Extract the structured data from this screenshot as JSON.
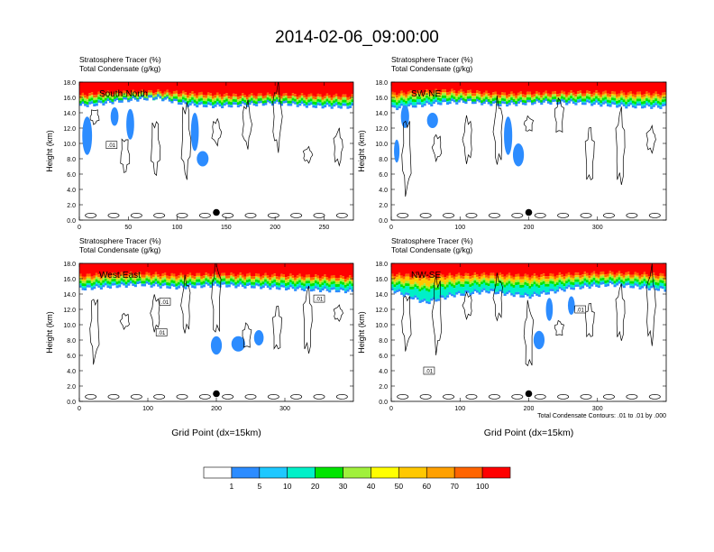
{
  "page_title": "2014-02-06_09:00:00",
  "chart_data": [
    {
      "type": "heatmap",
      "id": "south-north",
      "label": "South-North",
      "title_line1": "Stratosphere Tracer    (%)",
      "title_line2": "Total Condensate    (g/kg)",
      "ylabel": "Height (km)",
      "xlabel": "",
      "xlim": [
        0,
        280
      ],
      "ylim": [
        0,
        18
      ],
      "xticks": [
        0,
        50,
        100,
        150,
        200,
        250
      ],
      "yticks": [
        "0.0",
        "2.0",
        "4.0",
        "6.0",
        "8.0",
        "10.0",
        "12.0",
        "14.0",
        "16.0",
        "18.0"
      ],
      "marker_x": 140,
      "marker_y": 1.0,
      "contour_labels": [
        {
          "text": ".01",
          "x": 33,
          "y": 9.8
        }
      ],
      "tracer_profile": [
        [
          0,
          16.3,
          15.5,
          14.9
        ],
        [
          15,
          16.5,
          15.8,
          15.0
        ],
        [
          30,
          16.6,
          16.0,
          15.3
        ],
        [
          50,
          16.7,
          16.1,
          15.6
        ],
        [
          80,
          16.8,
          16.2,
          15.9
        ],
        [
          110,
          16.6,
          15.8,
          15.0
        ],
        [
          140,
          16.4,
          15.6,
          14.8
        ],
        [
          160,
          16.3,
          15.6,
          14.9
        ],
        [
          200,
          16.4,
          15.8,
          15.2
        ],
        [
          240,
          16.3,
          15.6,
          14.8
        ],
        [
          280,
          16.2,
          15.5,
          14.7
        ]
      ],
      "blue_blobs": [
        [
          36,
          13.5,
          4,
          1.2
        ],
        [
          52,
          12.5,
          4,
          2.0
        ],
        [
          118,
          11.5,
          4,
          2.5
        ],
        [
          126,
          8.0,
          6,
          1.0
        ],
        [
          8,
          11.0,
          5,
          2.5
        ]
      ]
    },
    {
      "type": "heatmap",
      "id": "sw-ne",
      "label": "SW-NE",
      "title_line1": "Stratosphere Tracer    (%)",
      "title_line2": "Total Condensate    (g/kg)",
      "ylabel": "Height (km)",
      "xlabel": "",
      "xlim": [
        0,
        400
      ],
      "ylim": [
        0,
        18
      ],
      "xticks": [
        0,
        100,
        200,
        300
      ],
      "yticks": [
        "0.0",
        "2.0",
        "4.0",
        "6.0",
        "8.0",
        "10.0",
        "12.0",
        "14.0",
        "16.0",
        "18.0"
      ],
      "marker_x": 200,
      "marker_y": 1.0,
      "contour_labels": [],
      "tracer_profile": [
        [
          0,
          16.5,
          15.5,
          14.5
        ],
        [
          30,
          16.7,
          15.9,
          14.8
        ],
        [
          70,
          16.9,
          16.1,
          15.2
        ],
        [
          110,
          16.8,
          16.0,
          15.4
        ],
        [
          160,
          16.5,
          15.7,
          15.0
        ],
        [
          220,
          16.6,
          15.9,
          15.3
        ],
        [
          280,
          16.7,
          16.0,
          15.2
        ],
        [
          340,
          16.6,
          15.7,
          14.8
        ],
        [
          400,
          16.5,
          15.6,
          14.7
        ]
      ],
      "blue_blobs": [
        [
          20,
          13.5,
          6,
          1.5
        ],
        [
          170,
          11.0,
          6,
          2.5
        ],
        [
          185,
          8.5,
          8,
          1.5
        ],
        [
          60,
          13.0,
          8,
          1.0
        ],
        [
          8,
          9.0,
          4,
          1.5
        ]
      ]
    },
    {
      "type": "heatmap",
      "id": "west-east",
      "label": "West-East",
      "title_line1": "Stratosphere Tracer    (%)",
      "title_line2": "Total Condensate    (g/kg)",
      "ylabel": "Height (km)",
      "xlabel": "Grid Point (dx=15km)",
      "xlim": [
        0,
        400
      ],
      "ylim": [
        0,
        18
      ],
      "xticks": [
        0,
        100,
        200,
        300
      ],
      "yticks": [
        "0.0",
        "2.0",
        "4.0",
        "6.0",
        "8.0",
        "10.0",
        "12.0",
        "14.0",
        "16.0",
        "18.0"
      ],
      "marker_x": 200,
      "marker_y": 1.0,
      "contour_labels": [
        {
          "text": ".01",
          "x": 125,
          "y": 13.0
        },
        {
          "text": ".01",
          "x": 350,
          "y": 13.4
        },
        {
          "text": ".01",
          "x": 120,
          "y": 9.0
        }
      ],
      "tracer_profile": [
        [
          0,
          16.4,
          15.5,
          14.6
        ],
        [
          40,
          16.6,
          15.8,
          14.9
        ],
        [
          90,
          16.7,
          15.9,
          15.2
        ],
        [
          140,
          16.5,
          15.6,
          14.8
        ],
        [
          200,
          16.6,
          15.9,
          15.1
        ],
        [
          260,
          16.5,
          15.7,
          14.9
        ],
        [
          320,
          16.4,
          15.6,
          14.6
        ],
        [
          400,
          16.2,
          15.4,
          14.3
        ]
      ],
      "blue_blobs": [
        [
          200,
          7.3,
          8,
          1.2
        ],
        [
          232,
          7.5,
          10,
          1.0
        ],
        [
          262,
          8.3,
          7,
          1.0
        ]
      ]
    },
    {
      "type": "heatmap",
      "id": "nw-se",
      "label": "NW-SE",
      "title_line1": "Stratosphere Tracer    (%)",
      "title_line2": "Total Condensate    (g/kg)",
      "ylabel": "Height (km)",
      "xlabel": "Grid Point (dx=15km)",
      "xlim": [
        0,
        400
      ],
      "ylim": [
        0,
        18
      ],
      "xticks": [
        0,
        100,
        200,
        300
      ],
      "yticks": [
        "0.0",
        "2.0",
        "4.0",
        "6.0",
        "8.0",
        "10.0",
        "12.0",
        "14.0",
        "16.0",
        "18.0"
      ],
      "marker_x": 200,
      "marker_y": 1.0,
      "contour_labels": [
        {
          "text": ".01",
          "x": 55,
          "y": 4.0
        },
        {
          "text": ".01",
          "x": 275,
          "y": 12.0
        }
      ],
      "tracer_profile": [
        [
          0,
          16.6,
          15.6,
          14.5
        ],
        [
          50,
          16.3,
          14.8,
          12.8
        ],
        [
          90,
          16.5,
          15.4,
          13.8
        ],
        [
          140,
          16.6,
          15.6,
          14.3
        ],
        [
          200,
          16.4,
          15.3,
          13.6
        ],
        [
          260,
          16.6,
          15.7,
          14.7
        ],
        [
          320,
          16.8,
          16.0,
          15.2
        ],
        [
          400,
          16.5,
          15.6,
          14.5
        ]
      ],
      "blue_blobs": [
        [
          215,
          8.0,
          8,
          1.2
        ],
        [
          230,
          12.0,
          5,
          1.5
        ],
        [
          262,
          12.5,
          5,
          1.2
        ]
      ]
    }
  ],
  "contour_note": "Total Condensate Contours: .01 to .01 by .000",
  "colorbar": {
    "labels": [
      "1",
      "5",
      "10",
      "20",
      "30",
      "40",
      "50",
      "60",
      "70",
      "100"
    ],
    "colors": [
      "#ffffff",
      "#2c8cff",
      "#1ec8ff",
      "#00f0c8",
      "#00e400",
      "#a0f03c",
      "#ffff00",
      "#ffc800",
      "#ffa000",
      "#ff6400",
      "#ff0000"
    ]
  }
}
